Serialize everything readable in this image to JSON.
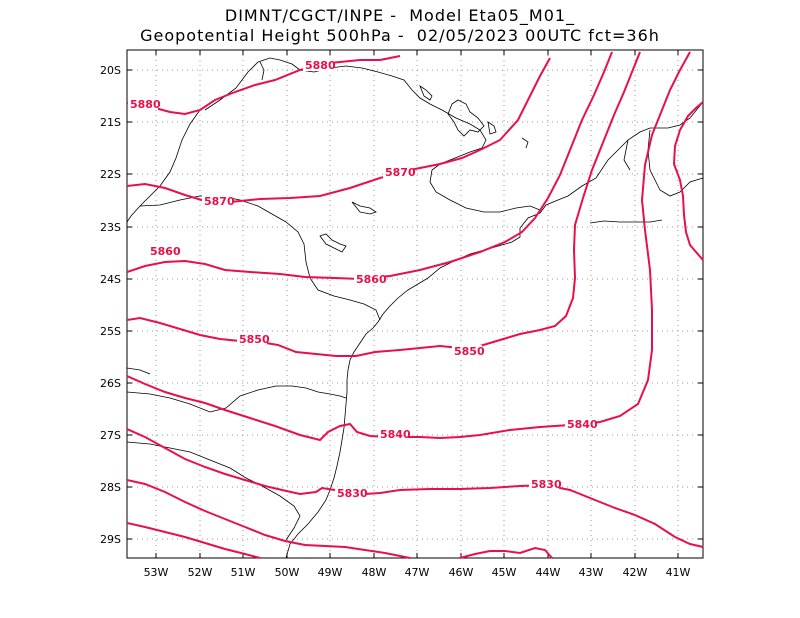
{
  "header": {
    "line1": "DIMNT/CGCT/INPE -  Model Eta05_M01_",
    "line2": "Geopotential Height 500hPa -  02/05/2023 00UTC fct=36h"
  },
  "map": {
    "contour_color": "#e8104a",
    "coast_color": "#000000",
    "grid_color": "#9a9a9a",
    "lat_labels": [
      "20S",
      "21S",
      "22S",
      "23S",
      "24S",
      "25S",
      "26S",
      "27S",
      "28S",
      "29S"
    ],
    "lon_labels": [
      "53W",
      "52W",
      "51W",
      "50W",
      "49W",
      "48W",
      "47W",
      "46W",
      "45W",
      "44W",
      "43W",
      "42W",
      "41W"
    ],
    "contour_labels": [
      {
        "text": "5880"
      },
      {
        "text": "5880"
      },
      {
        "text": "5870"
      },
      {
        "text": "5870"
      },
      {
        "text": "5860"
      },
      {
        "text": "5860"
      },
      {
        "text": "5850"
      },
      {
        "text": "5850"
      },
      {
        "text": "5840"
      },
      {
        "text": "5840"
      },
      {
        "text": "5830"
      },
      {
        "text": "5830"
      }
    ]
  }
}
